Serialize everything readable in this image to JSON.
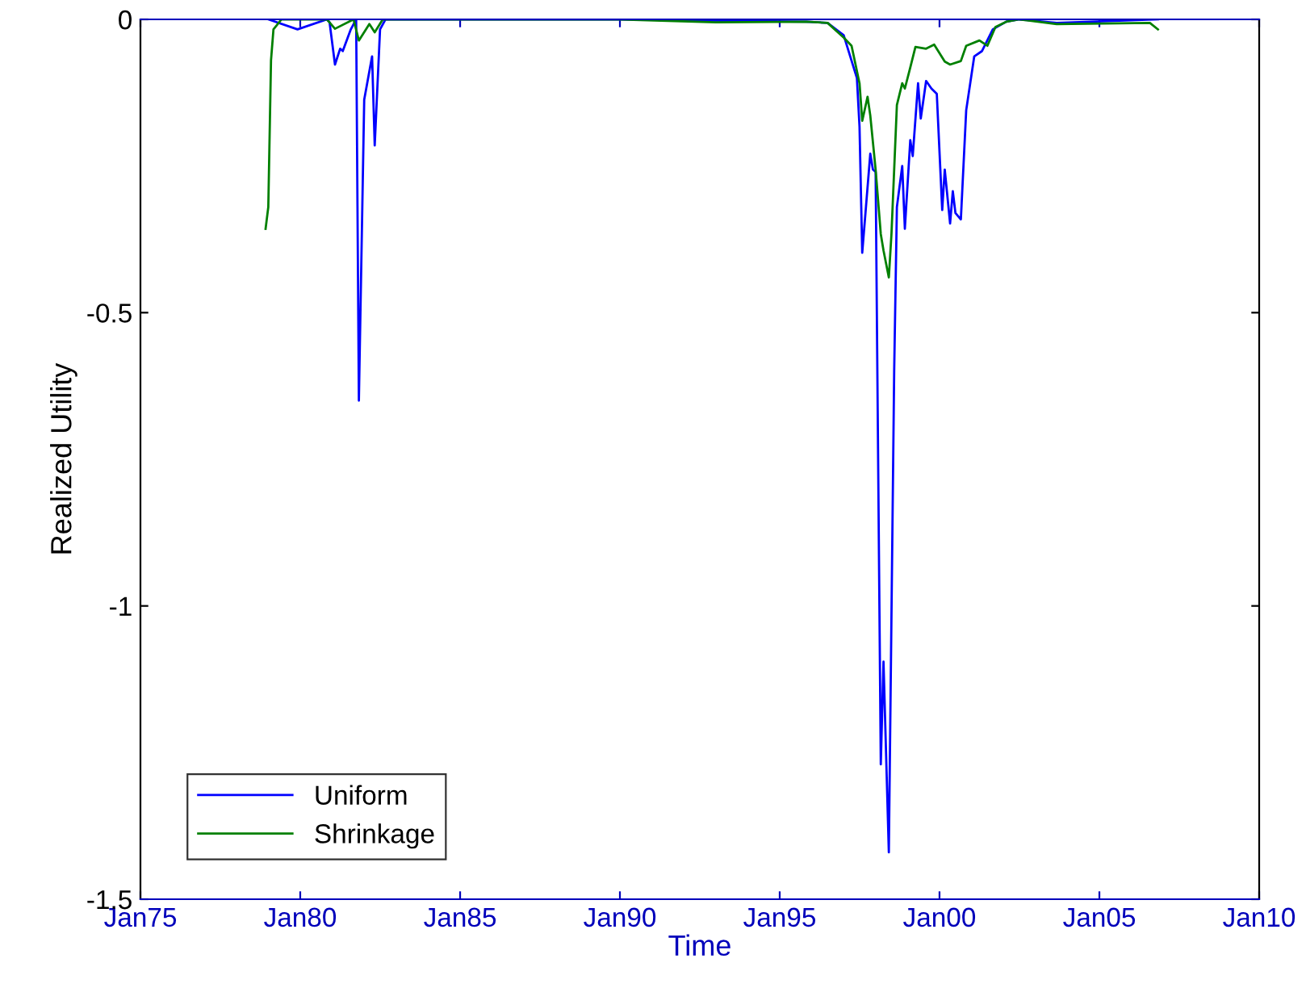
{
  "chart_data": {
    "type": "line",
    "xlabel": "Time",
    "ylabel": "Realized Utility",
    "xlim": [
      "1975-01",
      "2010-01"
    ],
    "ylim": [
      -1.5,
      0
    ],
    "xticks": [
      {
        "value": "1975-01",
        "label": "Jan75"
      },
      {
        "value": "1980-01",
        "label": "Jan80"
      },
      {
        "value": "1985-01",
        "label": "Jan85"
      },
      {
        "value": "1990-01",
        "label": "Jan90"
      },
      {
        "value": "1995-01",
        "label": "Jan95"
      },
      {
        "value": "2000-01",
        "label": "Jan00"
      },
      {
        "value": "2005-01",
        "label": "Jan05"
      },
      {
        "value": "2010-01",
        "label": "Jan10"
      }
    ],
    "yticks": [
      -1.5,
      -1,
      -0.5,
      0
    ],
    "grid": false,
    "legend": "bottom left",
    "marker": "none",
    "line_style": "solid",
    "series": [
      {
        "name": "Uniform",
        "color": "#0000ff",
        "x": [
          "1979-01",
          "1979-12",
          "1980-11",
          "1980-12",
          "1981-02",
          "1981-04",
          "1981-05",
          "1981-08",
          "1981-10",
          "1981-11",
          "1982-01",
          "1982-04",
          "1982-05",
          "1982-07",
          "1982-09",
          "1990-01",
          "1995-11",
          "1996-07",
          "1997-01",
          "1997-06",
          "1997-07",
          "1997-08",
          "1997-11",
          "1997-12",
          "1998-01",
          "1998-03",
          "1998-04",
          "1998-06",
          "1998-08",
          "1998-09",
          "1998-11",
          "1998-12",
          "1999-02",
          "1999-03",
          "1999-05",
          "1999-06",
          "1999-08",
          "1999-10",
          "1999-12",
          "2000-02",
          "2000-03",
          "2000-05",
          "2000-06",
          "2000-07",
          "2000-09",
          "2000-11",
          "2001-02",
          "2001-05",
          "2001-09",
          "2002-02",
          "2002-07",
          "2003-09",
          "2006-11"
        ],
        "values": [
          0,
          -0.017,
          0,
          -0.005,
          -0.077,
          -0.05,
          -0.054,
          -0.017,
          0,
          -0.65,
          -0.137,
          -0.063,
          -0.215,
          -0.017,
          0,
          0,
          -0.004,
          -0.006,
          -0.027,
          -0.1,
          -0.183,
          -0.398,
          -0.229,
          -0.256,
          -0.26,
          -1.27,
          -1.095,
          -1.42,
          -0.6,
          -0.32,
          -0.25,
          -0.357,
          -0.206,
          -0.233,
          -0.109,
          -0.169,
          -0.105,
          -0.118,
          -0.127,
          -0.325,
          -0.256,
          -0.348,
          -0.293,
          -0.33,
          -0.341,
          -0.155,
          -0.063,
          -0.054,
          -0.017,
          -0.004,
          0,
          -0.006,
          0
        ]
      },
      {
        "name": "Shrinkage",
        "color": "#008000",
        "x": [
          "1978-12",
          "1979-01",
          "1979-02",
          "1979-03",
          "1979-06",
          "1980-11",
          "1981-02",
          "1981-09",
          "1981-11",
          "1982-03",
          "1982-05",
          "1982-08",
          "1990-01",
          "1993-01",
          "1995-11",
          "1996-07",
          "1997-01",
          "1997-04",
          "1997-07",
          "1997-08",
          "1997-10",
          "1997-11",
          "1998-01",
          "1998-03",
          "1998-04",
          "1998-06",
          "1998-07",
          "1998-09",
          "1998-11",
          "1998-12",
          "1999-02",
          "1999-04",
          "1999-08",
          "1999-11",
          "2000-03",
          "2000-05",
          "2000-09",
          "2000-11",
          "2001-04",
          "2001-07",
          "2001-10",
          "2002-02",
          "2002-07",
          "2003-09",
          "2006-08",
          "2006-11"
        ],
        "values": [
          -0.357,
          -0.32,
          -0.07,
          -0.017,
          0,
          0,
          -0.016,
          0,
          -0.036,
          -0.008,
          -0.022,
          0,
          0,
          -0.005,
          -0.004,
          -0.006,
          -0.031,
          -0.045,
          -0.109,
          -0.173,
          -0.132,
          -0.164,
          -0.256,
          -0.366,
          -0.394,
          -0.44,
          -0.366,
          -0.146,
          -0.109,
          -0.118,
          -0.082,
          -0.047,
          -0.05,
          -0.043,
          -0.072,
          -0.077,
          -0.071,
          -0.045,
          -0.036,
          -0.045,
          -0.013,
          -0.004,
          0,
          -0.008,
          -0.006,
          -0.017
        ]
      }
    ]
  }
}
